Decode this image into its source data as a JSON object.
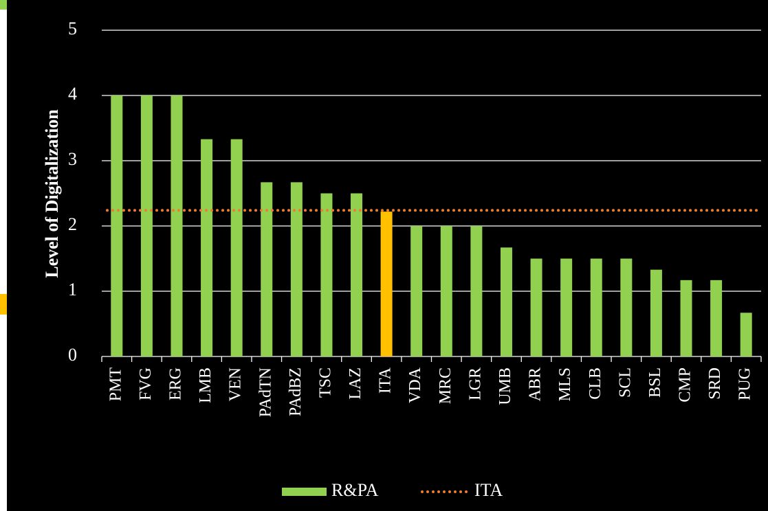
{
  "chart_data": {
    "type": "bar",
    "ylabel": "Level of Digitalization",
    "categories": [
      "PMT",
      "FVG",
      "ERG",
      "LMB",
      "VEN",
      "PAdTN",
      "PAdBZ",
      "TSC",
      "LAZ",
      "ITA",
      "VDA",
      "MRC",
      "LGR",
      "UMB",
      "ABR",
      "MLS",
      "CLB",
      "SCL",
      "BSL",
      "CMP",
      "SRD",
      "PUG"
    ],
    "series": [
      {
        "name": "R&PA",
        "color": "#92d050",
        "colors": [
          "#92d050",
          "#92d050",
          "#92d050",
          "#92d050",
          "#92d050",
          "#92d050",
          "#92d050",
          "#92d050",
          "#92d050",
          "#ffc000",
          "#92d050",
          "#92d050",
          "#92d050",
          "#92d050",
          "#92d050",
          "#92d050",
          "#92d050",
          "#92d050",
          "#92d050",
          "#92d050",
          "#92d050",
          "#92d050"
        ],
        "values": [
          4,
          4,
          4,
          3.33,
          3.33,
          2.67,
          2.67,
          2.5,
          2.5,
          2.22,
          2,
          2,
          2,
          1.67,
          1.5,
          1.5,
          1.5,
          1.5,
          1.33,
          1.17,
          1.17,
          0.67
        ]
      },
      {
        "name": "ITA",
        "color": "#ed7d31",
        "line_style": "dotted",
        "value": 2.24
      }
    ],
    "ylim": [
      0,
      5
    ],
    "yticks": [
      0,
      1,
      2,
      3,
      4,
      5
    ],
    "grid": true,
    "legend": "bottom"
  }
}
